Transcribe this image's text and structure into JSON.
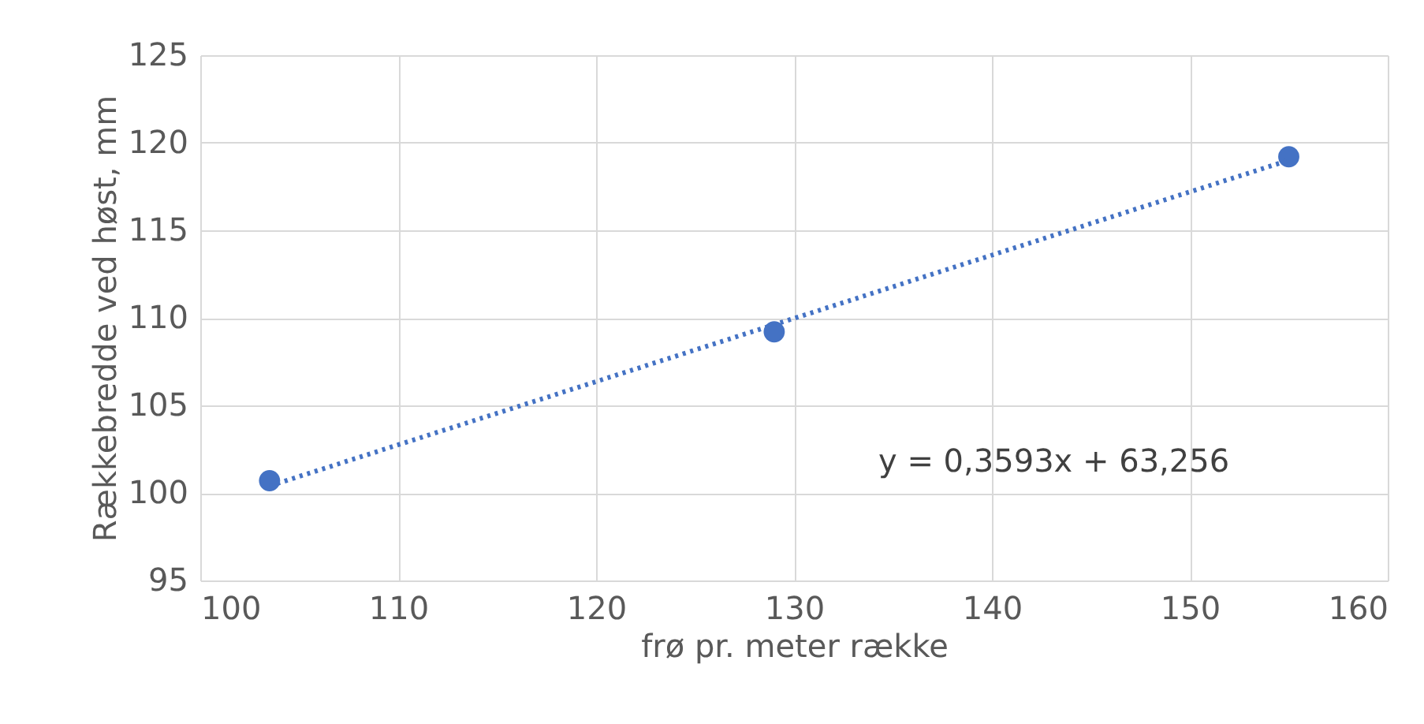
{
  "chart_data": {
    "type": "scatter",
    "xlabel": "frø pr. meter række",
    "ylabel": "Rækkebredde ved høst, mm",
    "x": [
      103.5,
      129,
      155
    ],
    "series": [
      {
        "color": "#4472c4",
        "values": [
          100.7,
          109.2,
          119.2
        ],
        "marker": "circle"
      },
      {
        "type": "line",
        "color": "#4472c4",
        "x": [
          103.5,
          155
        ],
        "values": [
          100.4,
          119.0
        ],
        "line_style": "dotted"
      }
    ],
    "annotations": [
      "y = 0,3593x + 63,256"
    ],
    "xlim": [
      100,
      160
    ],
    "xticks": [
      100,
      110,
      120,
      130,
      140,
      150,
      160
    ],
    "ylim": [
      95,
      125
    ],
    "yticks": [
      95,
      100,
      105,
      110,
      115,
      120,
      125
    ],
    "grid": true,
    "legend": false
  }
}
